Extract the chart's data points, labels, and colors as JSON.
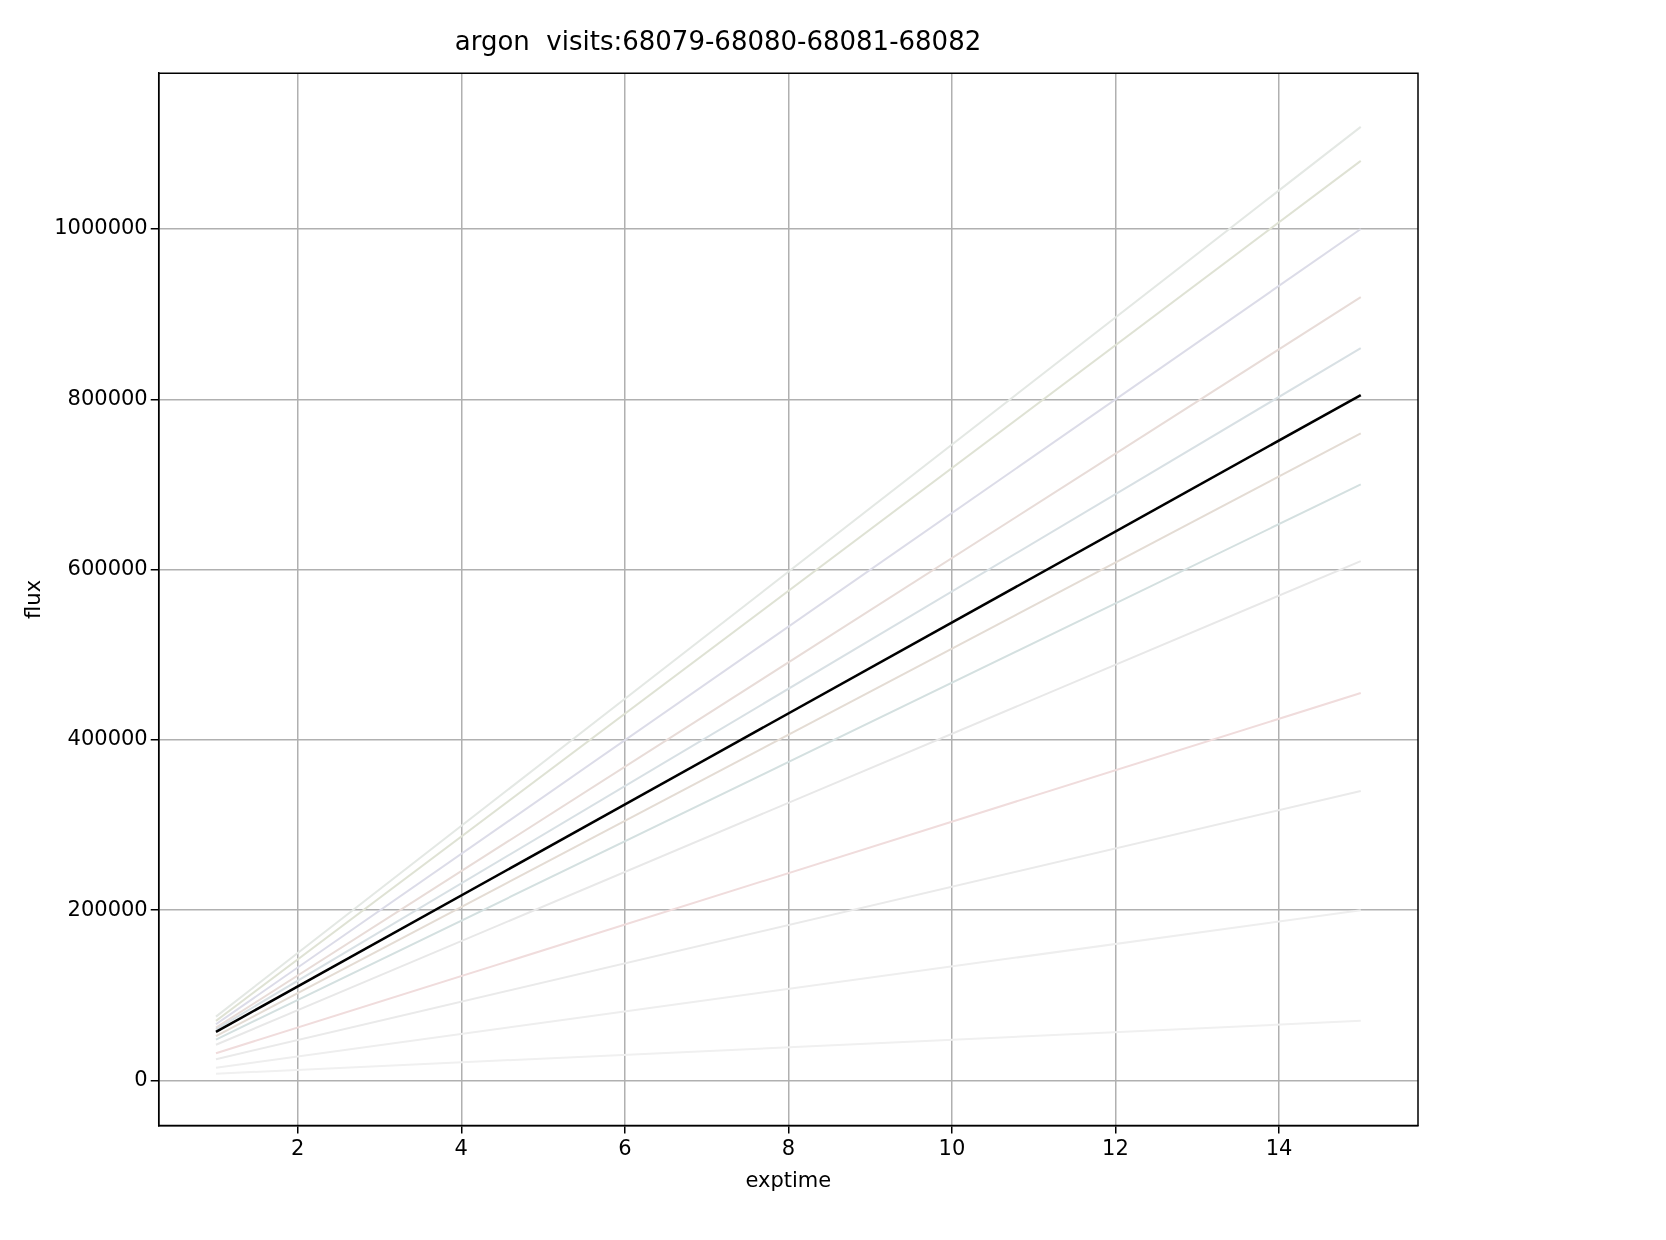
{
  "chart_data": {
    "type": "line",
    "title": "argon  visits:68079-68080-68081-68082",
    "xlabel": "exptime",
    "ylabel": "flux",
    "x": [
      1,
      15
    ],
    "series": [
      {
        "color": "#e4e8e4",
        "values": [
          75000,
          1120000
        ]
      },
      {
        "color": "#dfe2d4",
        "values": [
          70000,
          1080000
        ]
      },
      {
        "color": "#dcdce8",
        "values": [
          66000,
          1000000
        ]
      },
      {
        "color": "#e8dcd8",
        "values": [
          62000,
          920000
        ]
      },
      {
        "color": "#d8e0e4",
        "values": [
          60000,
          860000
        ]
      },
      {
        "color": "#e4dcd4",
        "values": [
          52000,
          760000
        ]
      },
      {
        "color": "#d4e0e0",
        "values": [
          48000,
          700000
        ]
      },
      {
        "color": "#e8e8e8",
        "values": [
          42000,
          610000
        ]
      },
      {
        "color": "#f0dcdc",
        "values": [
          32000,
          455000
        ]
      },
      {
        "color": "#eaeaea",
        "values": [
          25000,
          340000
        ]
      },
      {
        "color": "#eeeeee",
        "values": [
          15000,
          200000
        ]
      },
      {
        "color": "#f0f0f0",
        "values": [
          8000,
          70000
        ]
      },
      {
        "color": "#000000",
        "values": [
          57000,
          805000
        ]
      }
    ],
    "xlim": [
      0.3,
      15.7
    ],
    "xticks": [
      2,
      4,
      6,
      8,
      10,
      12,
      14
    ],
    "ylim": [
      -53000,
      1183000
    ],
    "yticks": [
      0,
      200000,
      400000,
      600000,
      800000,
      1000000
    ],
    "grid": true,
    "marker": "none",
    "line_style": "solid"
  }
}
